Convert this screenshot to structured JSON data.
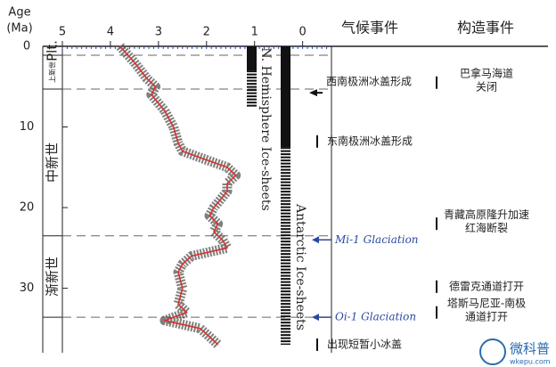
{
  "chart_data": {
    "type": "line",
    "y_label_lines": [
      "Age",
      "(Ma)"
    ],
    "xlim": [
      5,
      -0.6
    ],
    "xticks": [
      5,
      4,
      3,
      2,
      1,
      0
    ],
    "ylim": [
      0,
      38
    ],
    "yticks": [
      0,
      10,
      20,
      30
    ],
    "y": [
      0,
      2,
      4,
      5,
      6,
      8,
      10,
      12,
      13,
      14,
      15,
      16,
      17,
      18,
      20,
      21,
      22,
      23,
      24,
      25,
      26,
      27,
      28,
      30,
      32,
      33,
      34,
      35,
      36,
      37
    ],
    "series": [
      {
        "color": "#d9322b",
        "values": [
          3.8,
          3.5,
          3.24,
          3.06,
          3.15,
          2.87,
          2.69,
          2.59,
          2.5,
          2.04,
          1.57,
          1.39,
          1.57,
          1.57,
          1.85,
          1.94,
          1.76,
          1.85,
          1.67,
          1.57,
          2.31,
          2.5,
          2.59,
          2.5,
          2.59,
          2.41,
          2.87,
          2.13,
          1.94,
          1.76
        ]
      }
    ],
    "epochs": [
      {
        "label": "Plt.",
        "range": [
          0,
          1.1
        ]
      },
      {
        "label": "上新世",
        "range": [
          1.1,
          5.3
        ]
      },
      {
        "label": "中新世",
        "range": [
          5.3,
          23.5
        ]
      },
      {
        "label": "渐新世",
        "range": [
          23.5,
          33.6
        ]
      }
    ],
    "ice_sheets": [
      {
        "label": "N. Hemisphere Ice-sheets",
        "solid": [
          0,
          3
        ],
        "dashed": [
          3,
          7.5
        ]
      },
      {
        "label": "Antarctic Ice-sheets",
        "solid": [
          0,
          12.5
        ],
        "dashed": [
          12.5,
          37
        ]
      }
    ],
    "climate_header": "气候事件",
    "tectonic_header": "构造事件",
    "climate_events": [
      {
        "label": "西南极洲冰盖形成",
        "age": 5.1
      },
      {
        "label": "东南极洲冰盖形成",
        "age": 11.8
      },
      {
        "label": "Mi-1 Glaciation",
        "age": 24
      },
      {
        "label": "Oi-1 Glaciation",
        "age": 33.6
      },
      {
        "label": "出现短暂小冰盖",
        "age": 37
      }
    ],
    "tectonic_events": [
      {
        "lines": [
          "巴拿马海道",
          "关闭"
        ],
        "age": 4.5
      },
      {
        "lines": [
          "青藏高原隆升加速",
          "红海断裂"
        ],
        "age": 22
      },
      {
        "lines": [
          "德雷克通道打开"
        ],
        "age": 29.8
      },
      {
        "lines": [
          "塔斯马尼亚-南极",
          "通道打开"
        ],
        "age": 33
      }
    ],
    "watermark": [
      "微科普",
      "wkepu.com"
    ]
  }
}
